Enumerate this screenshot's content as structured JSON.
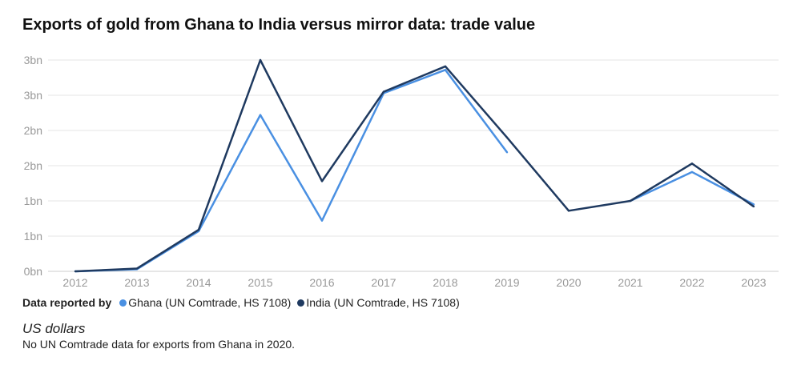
{
  "chart_data": {
    "type": "line",
    "title": "Exports of gold from Ghana to India versus mirror data: trade value",
    "x": [
      "2012",
      "2013",
      "2014",
      "2015",
      "2016",
      "2017",
      "2018",
      "2019",
      "2020",
      "2021",
      "2022",
      "2023"
    ],
    "y_ticks": [
      0,
      0.5,
      1,
      1.5,
      2,
      2.5,
      3
    ],
    "y_tick_labels": [
      "0bn",
      "1bn",
      "1bn",
      "2bn",
      "2bn",
      "3bn",
      "3bn"
    ],
    "ylim": [
      0,
      3
    ],
    "legend_title": "Data reported by",
    "legend_placement": "bottom-left",
    "series": [
      {
        "name": "Ghana (UN Comtrade, HS 7108)",
        "color": "#4a90e2",
        "values": [
          0,
          0.03,
          0.57,
          2.22,
          0.72,
          2.53,
          2.86,
          1.69,
          null,
          1.0,
          1.41,
          0.95
        ]
      },
      {
        "name": "India (UN Comtrade, HS 7108)",
        "color": "#1f3a60",
        "values": [
          0,
          0.04,
          0.59,
          3.0,
          1.28,
          2.55,
          2.91,
          1.9,
          0.86,
          1.0,
          1.53,
          0.92
        ]
      }
    ],
    "unit": "US dollars",
    "note": "No UN Comtrade data for exports from Ghana in 2020."
  }
}
